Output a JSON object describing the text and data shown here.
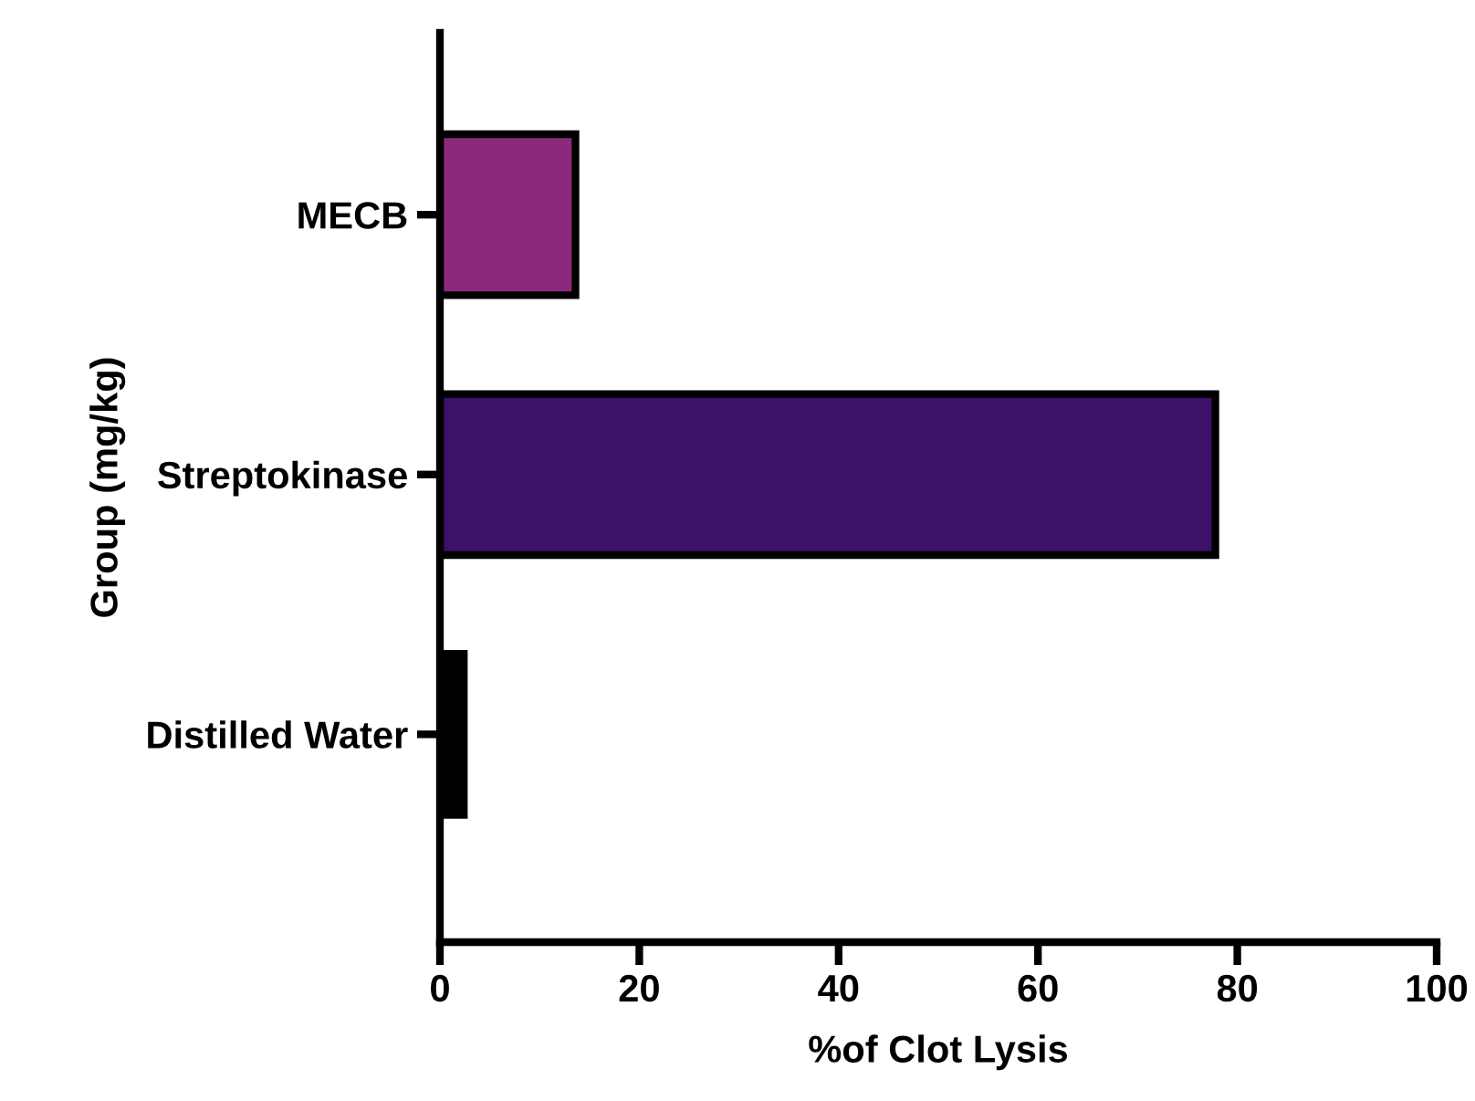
{
  "chart_data": {
    "type": "bar",
    "orientation": "horizontal",
    "categories": [
      "MECB",
      "Streptokinase",
      "Distilled Water"
    ],
    "values": [
      13.6,
      77.8,
      2.4
    ],
    "colors": [
      "#8b2a7c",
      "#3c1169",
      "#000000"
    ],
    "xlabel": "%of Clot Lysis",
    "ylabel": "Group (mg/kg)",
    "xlim": [
      0,
      100
    ],
    "xticks": [
      0,
      20,
      40,
      60,
      80,
      100
    ],
    "grid": false,
    "legend": false
  }
}
